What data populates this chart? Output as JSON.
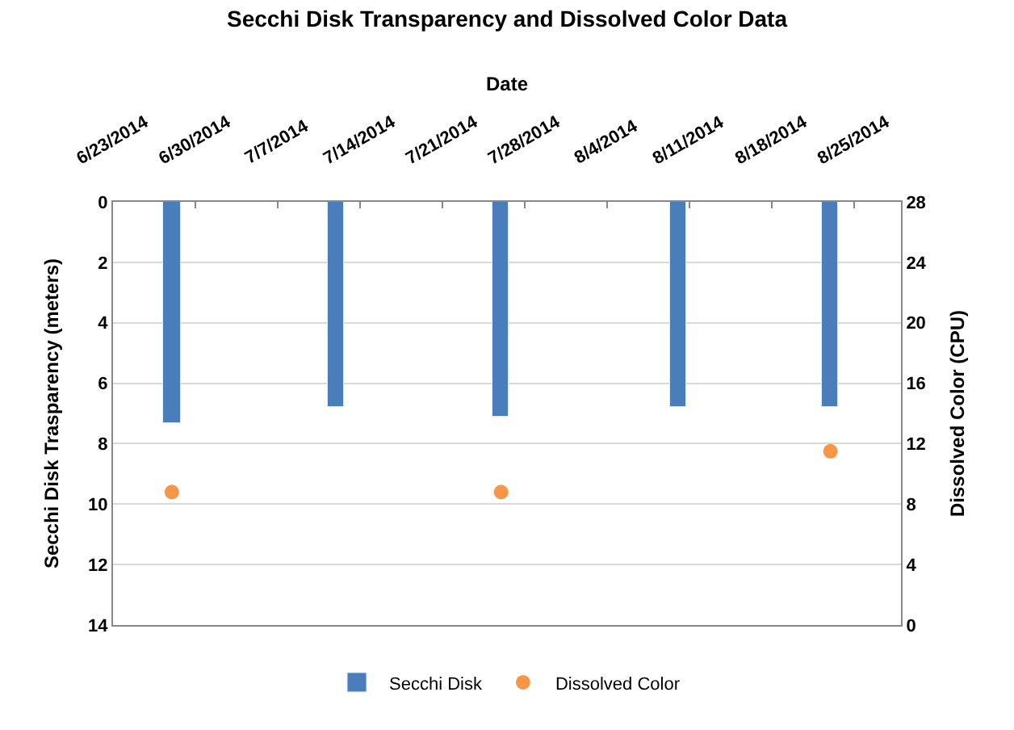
{
  "chart_data": {
    "type": "bar",
    "title": "Secchi Disk Transparency and Dissolved Color Data",
    "xlabel": "Date",
    "ylabel": "Secchi Disk Trasparency (meters)",
    "y2label": "Dissolved Color (CPU)",
    "x": [
      "2014-06-28",
      "2014-07-12",
      "2014-07-26",
      "2014-08-10",
      "2014-08-23"
    ],
    "series": [
      {
        "name": "Secchi Disk",
        "color": "#4a7ebb",
        "values": [
          7.3,
          6.8,
          7.1,
          6.8,
          6.8
        ]
      },
      {
        "name": "Dissolved Color",
        "type": "scatter",
        "axis": "y2",
        "color": "#f79646",
        "marker": "circle",
        "values": [
          8.8,
          null,
          8.8,
          null,
          11.5
        ]
      }
    ],
    "xlim": [
      "2014-06-23",
      "2014-08-29"
    ],
    "xticks": [
      {
        "value": "2014-06-23",
        "label": "6/23/2014"
      },
      {
        "value": "2014-06-30",
        "label": "6/30/2014"
      },
      {
        "value": "2014-07-07",
        "label": "7/7/2014"
      },
      {
        "value": "2014-07-14",
        "label": "7/14/2014"
      },
      {
        "value": "2014-07-21",
        "label": "7/21/2014"
      },
      {
        "value": "2014-07-28",
        "label": "7/28/2014"
      },
      {
        "value": "2014-08-04",
        "label": "8/4/2014"
      },
      {
        "value": "2014-08-11",
        "label": "8/11/2014"
      },
      {
        "value": "2014-08-18",
        "label": "8/18/2014"
      },
      {
        "value": "2014-08-25",
        "label": "8/25/2014"
      }
    ],
    "ylim": [
      14,
      0
    ],
    "yticks": [
      0,
      2,
      4,
      6,
      8,
      10,
      12,
      14
    ],
    "y2lim": [
      0,
      28
    ],
    "y2ticks": [
      0,
      4,
      8,
      12,
      16,
      20,
      24,
      28
    ],
    "grid": "y",
    "legend": "bottom"
  }
}
